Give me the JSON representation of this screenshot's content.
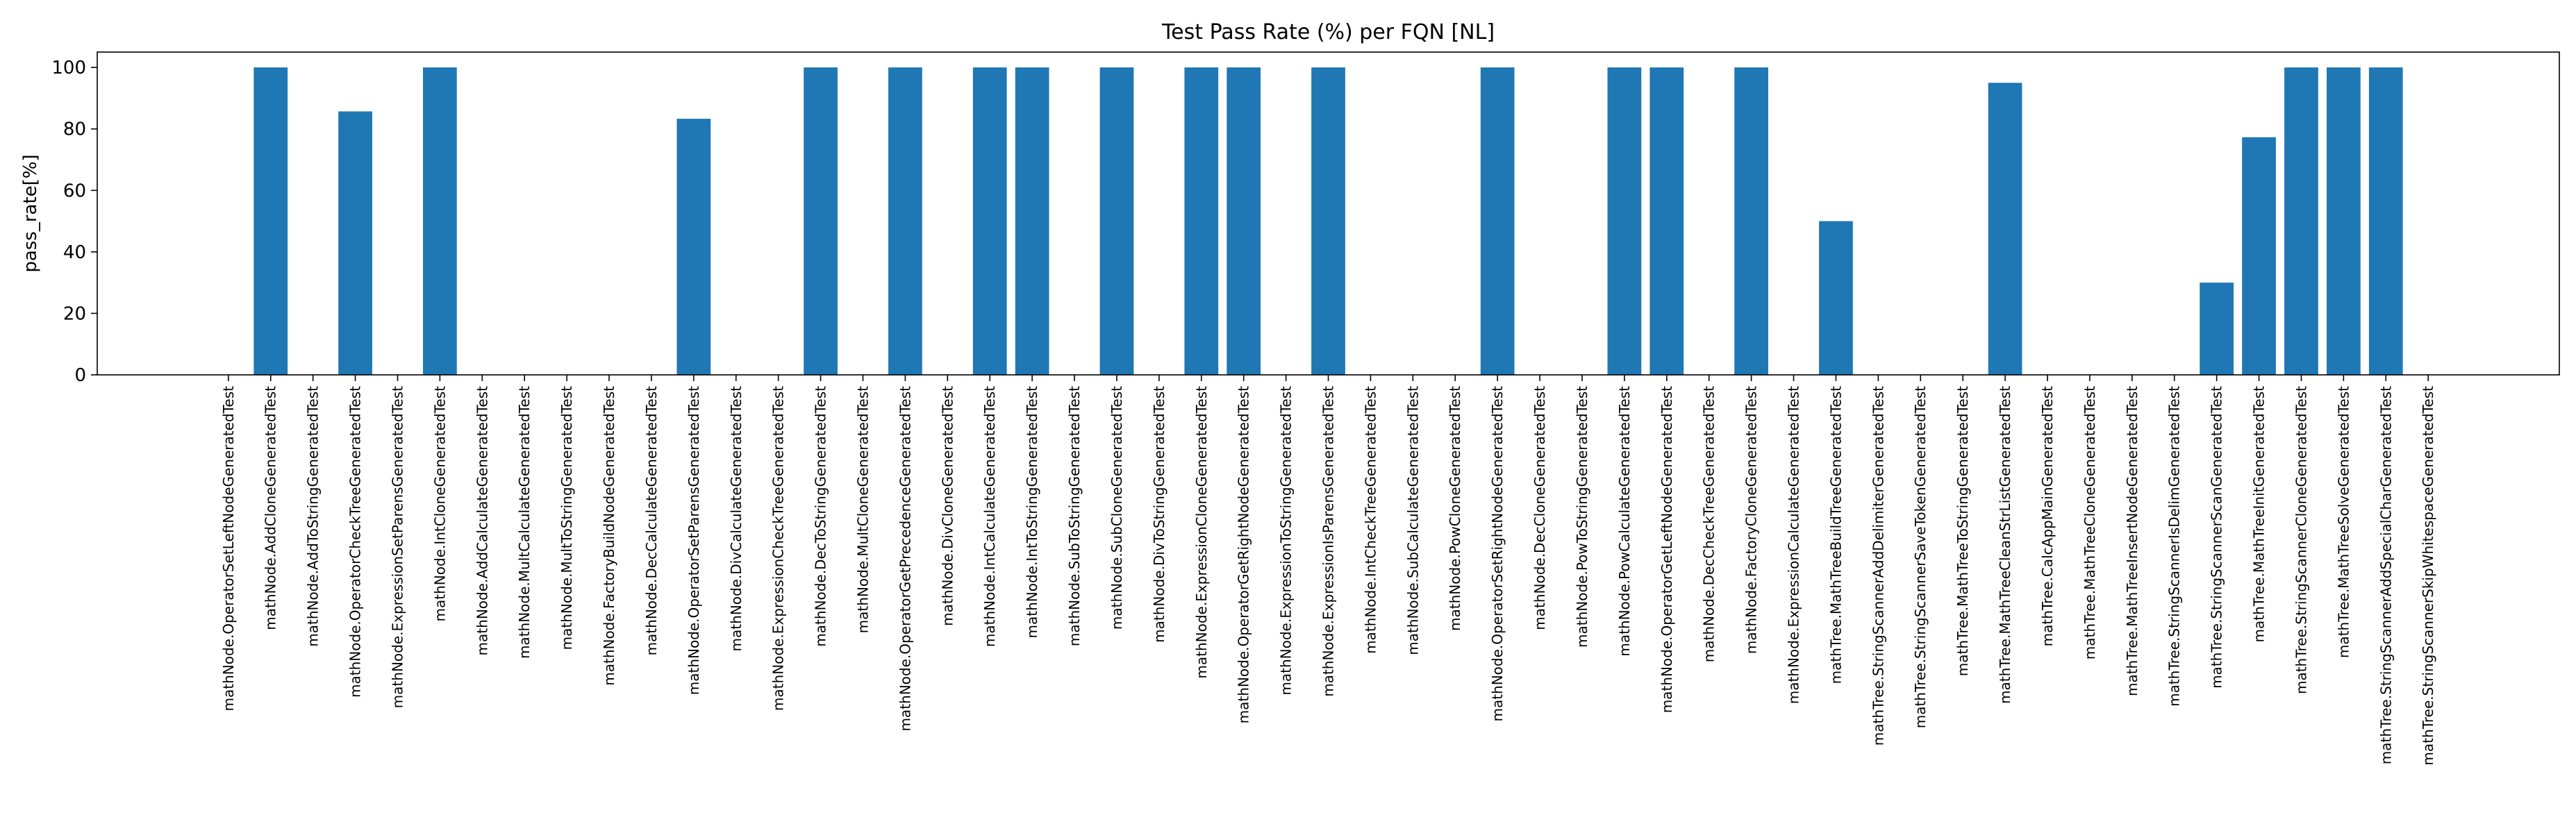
{
  "chart_data": {
    "type": "bar",
    "title": "Test Pass Rate (%) per FQN [NL]",
    "xlabel": "",
    "ylabel": "pass_rate[%]",
    "ylim": [
      0,
      105
    ],
    "yticks": [
      0,
      20,
      40,
      60,
      80,
      100
    ],
    "grid": false,
    "bar_color": "#1f77b4",
    "categories": [
      "mathNode.OperatorSetLeftNodeGeneratedTest",
      "mathNode.AddCloneGeneratedTest",
      "mathNode.AddToStringGeneratedTest",
      "mathNode.OperatorCheckTreeGeneratedTest",
      "mathNode.ExpressionSetParensGeneratedTest",
      "mathNode.IntCloneGeneratedTest",
      "mathNode.AddCalculateGeneratedTest",
      "mathNode.MultCalculateGeneratedTest",
      "mathNode.MultToStringGeneratedTest",
      "mathNode.FactoryBuildNodeGeneratedTest",
      "mathNode.DecCalculateGeneratedTest",
      "mathNode.OperatorSetParensGeneratedTest",
      "mathNode.DivCalculateGeneratedTest",
      "mathNode.ExpressionCheckTreeGeneratedTest",
      "mathNode.DecToStringGeneratedTest",
      "mathNode.MultCloneGeneratedTest",
      "mathNode.OperatorGetPrecedenceGeneratedTest",
      "mathNode.DivCloneGeneratedTest",
      "mathNode.IntCalculateGeneratedTest",
      "mathNode.IntToStringGeneratedTest",
      "mathNode.SubToStringGeneratedTest",
      "mathNode.SubCloneGeneratedTest",
      "mathNode.DivToStringGeneratedTest",
      "mathNode.ExpressionCloneGeneratedTest",
      "mathNode.OperatorGetRightNodeGeneratedTest",
      "mathNode.ExpressionToStringGeneratedTest",
      "mathNode.ExpressionIsParensGeneratedTest",
      "mathNode.IntCheckTreeGeneratedTest",
      "mathNode.SubCalculateGeneratedTest",
      "mathNode.PowCloneGeneratedTest",
      "mathNode.OperatorSetRightNodeGeneratedTest",
      "mathNode.DecCloneGeneratedTest",
      "mathNode.PowToStringGeneratedTest",
      "mathNode.PowCalculateGeneratedTest",
      "mathNode.OperatorGetLeftNodeGeneratedTest",
      "mathNode.DecCheckTreeGeneratedTest",
      "mathNode.FactoryCloneGeneratedTest",
      "mathNode.ExpressionCalculateGeneratedTest",
      "mathTree.MathTreeBuildTreeGeneratedTest",
      "mathTree.StringScannerAddDelimiterGeneratedTest",
      "mathTree.StringScannerSaveTokenGeneratedTest",
      "mathTree.MathTreeToStringGeneratedTest",
      "mathTree.MathTreeCleanStrListGeneratedTest",
      "mathTree.CalcAppMainGeneratedTest",
      "mathTree.MathTreeCloneGeneratedTest",
      "mathTree.MathTreeInsertNodeGeneratedTest",
      "mathTree.StringScannerIsDelimGeneratedTest",
      "mathTree.StringScannerScanGeneratedTest",
      "mathTree.MathTreeInitGeneratedTest",
      "mathTree.StringScannerCloneGeneratedTest",
      "mathTree.MathTreeSolveGeneratedTest",
      "mathTree.StringScannerAddSpecialCharGeneratedTest",
      "mathTree.StringScannerSkipWhitespaceGeneratedTest"
    ],
    "values": [
      0,
      100,
      0,
      85.7,
      0,
      100,
      0,
      0,
      0,
      0,
      0,
      83.3,
      0,
      0,
      100,
      0,
      100,
      0,
      100,
      100,
      0,
      100,
      0,
      100,
      100,
      0,
      100,
      0,
      0,
      0,
      100,
      0,
      0,
      100,
      100,
      0,
      100,
      0,
      50,
      0,
      0,
      0,
      95,
      0,
      0,
      0,
      0,
      30,
      77.3,
      100,
      100,
      100,
      0
    ]
  }
}
